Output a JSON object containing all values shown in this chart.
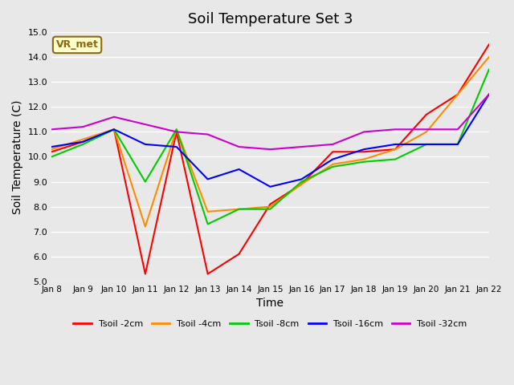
{
  "title": "Soil Temperature Set 3",
  "xlabel": "Time",
  "ylabel": "Soil Temperature (C)",
  "ylim": [
    5.0,
    15.0
  ],
  "yticks": [
    5.0,
    6.0,
    7.0,
    8.0,
    9.0,
    10.0,
    11.0,
    12.0,
    13.0,
    14.0,
    15.0
  ],
  "xtick_labels": [
    "Jan 8",
    "Jan 9",
    "Jan 10",
    "Jan 11",
    "Jan 12",
    "Jan 13",
    "Jan 14",
    "Jan 15",
    "Jan 16",
    "Jan 17",
    "Jan 18",
    "Jan 19",
    "Jan 20",
    "Jan 21",
    "Jan 22"
  ],
  "background_color": "#e8e8e8",
  "plot_bg_color": "#e8e8e8",
  "grid_color": "#ffffff",
  "annotation_text": "VR_met",
  "annotation_bg": "#ffffcc",
  "annotation_border": "#8B6914",
  "series": [
    {
      "label": "Tsoil -2cm",
      "color": "#ff0000",
      "values": [
        10.2,
        10.6,
        11.1,
        5.3,
        11.0,
        5.3,
        6.1,
        8.1,
        8.9,
        10.2,
        10.2,
        10.3,
        11.7,
        12.5,
        14.5
      ]
    },
    {
      "label": "Tsoil -4cm",
      "color": "#ff8c00",
      "values": [
        10.3,
        10.7,
        11.1,
        7.2,
        11.1,
        7.8,
        7.9,
        8.0,
        8.9,
        9.7,
        9.9,
        10.3,
        11.0,
        12.5,
        14.0
      ]
    },
    {
      "label": "Tsoil -8cm",
      "color": "#00cc00",
      "values": [
        10.0,
        10.5,
        11.1,
        9.0,
        11.1,
        7.3,
        7.9,
        7.9,
        9.0,
        9.6,
        9.8,
        9.9,
        10.5,
        10.5,
        13.5
      ]
    },
    {
      "label": "Tsoil -16cm",
      "color": "#0000ff",
      "values": [
        10.4,
        10.6,
        11.1,
        10.5,
        10.4,
        9.1,
        9.5,
        8.8,
        9.1,
        9.9,
        10.3,
        10.5,
        10.5,
        10.5,
        12.5
      ]
    },
    {
      "label": "Tsoil -32cm",
      "color": "#cc00cc",
      "values": [
        11.1,
        11.2,
        11.6,
        11.3,
        11.0,
        10.9,
        10.4,
        10.3,
        10.4,
        10.5,
        11.0,
        11.1,
        11.1,
        11.1,
        12.5
      ]
    }
  ]
}
